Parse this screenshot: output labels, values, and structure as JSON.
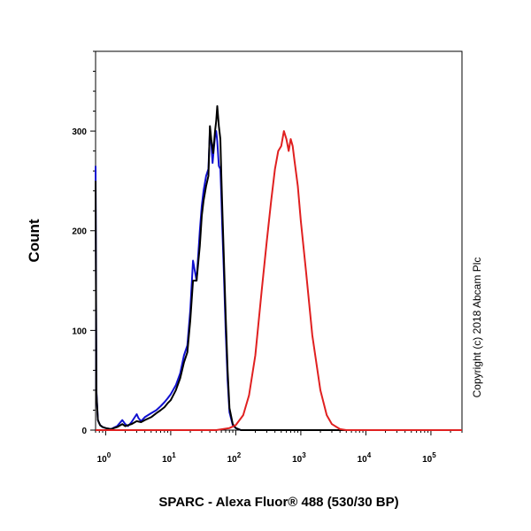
{
  "chart_data": {
    "type": "line",
    "xlabel": "SPARC - Alexa Fluor® 488 (530/30 BP)",
    "ylabel": "Count",
    "xscale": "log",
    "xlim": [
      0.7,
      300000
    ],
    "ylim": [
      0,
      380
    ],
    "x_ticks": [
      {
        "value": 1,
        "base": "10",
        "exp": "0"
      },
      {
        "value": 10,
        "base": "10",
        "exp": "1"
      },
      {
        "value": 100,
        "base": "10",
        "exp": "2"
      },
      {
        "value": 1000,
        "base": "10",
        "exp": "3"
      },
      {
        "value": 10000,
        "base": "10",
        "exp": "4"
      },
      {
        "value": 100000,
        "base": "10",
        "exp": "5"
      }
    ],
    "y_ticks": [
      {
        "value": 0,
        "label": "0"
      },
      {
        "value": 100,
        "label": "100"
      },
      {
        "value": 200,
        "label": "200"
      },
      {
        "value": 300,
        "label": "300"
      }
    ],
    "grid": false,
    "series": [
      {
        "color": "#1010d0",
        "x": [
          0.7,
          0.72,
          0.76,
          0.82,
          0.9,
          1.0,
          1.2,
          1.5,
          1.8,
          2.0,
          2.2,
          2.5,
          3.0,
          3.2,
          3.5,
          4.0,
          5.0,
          6.0,
          7.0,
          8.0,
          9.0,
          10,
          12,
          14,
          16,
          18,
          20,
          22,
          25,
          28,
          30,
          32,
          35,
          38,
          40,
          42,
          44,
          46,
          48,
          50,
          52,
          55,
          58,
          60,
          62,
          65,
          70,
          75,
          80,
          90,
          100,
          120,
          150,
          200,
          500,
          1000,
          300000
        ],
        "values": [
          265,
          40,
          10,
          5,
          3,
          2,
          1,
          4,
          10,
          6,
          4,
          8,
          16,
          12,
          9,
          13,
          17,
          20,
          24,
          28,
          32,
          36,
          45,
          57,
          75,
          85,
          120,
          170,
          150,
          200,
          225,
          240,
          255,
          262,
          300,
          288,
          268,
          282,
          295,
          300,
          290,
          265,
          262,
          235,
          205,
          165,
          100,
          50,
          18,
          5,
          2,
          0,
          0,
          0,
          0,
          0,
          0
        ]
      },
      {
        "color": "#000000",
        "x": [
          0.7,
          0.72,
          0.76,
          0.82,
          0.9,
          1.0,
          1.2,
          1.5,
          1.8,
          2.0,
          2.5,
          3.0,
          3.5,
          4.0,
          5.0,
          6.0,
          7.0,
          8.0,
          9.0,
          10,
          12,
          14,
          16,
          18,
          20,
          22,
          25,
          28,
          30,
          32,
          35,
          38,
          40,
          42,
          45,
          48,
          50,
          52,
          55,
          58,
          60,
          62,
          65,
          70,
          75,
          80,
          90,
          100,
          120,
          150,
          200,
          500,
          1000,
          300000
        ],
        "values": [
          250,
          38,
          10,
          5,
          3,
          2,
          1,
          3,
          6,
          4,
          6,
          9,
          8,
          10,
          13,
          17,
          20,
          23,
          27,
          30,
          40,
          52,
          68,
          78,
          110,
          150,
          150,
          185,
          215,
          230,
          245,
          255,
          305,
          292,
          278,
          300,
          310,
          325,
          305,
          292,
          255,
          225,
          180,
          115,
          60,
          22,
          6,
          2,
          0,
          0,
          0,
          0,
          0,
          0
        ]
      },
      {
        "color": "#e02020",
        "x": [
          0.7,
          50,
          80,
          100,
          130,
          160,
          200,
          250,
          300,
          350,
          400,
          450,
          500,
          550,
          600,
          650,
          700,
          750,
          800,
          900,
          1000,
          1200,
          1500,
          2000,
          2500,
          3000,
          4000,
          5000,
          300000
        ],
        "values": [
          0,
          0,
          2,
          5,
          15,
          35,
          75,
          140,
          190,
          230,
          262,
          280,
          285,
          300,
          292,
          280,
          292,
          285,
          270,
          245,
          210,
          160,
          95,
          40,
          15,
          6,
          1,
          0,
          0
        ]
      }
    ]
  },
  "copyright": "Copyright (c) 2018 Abcam Plc"
}
